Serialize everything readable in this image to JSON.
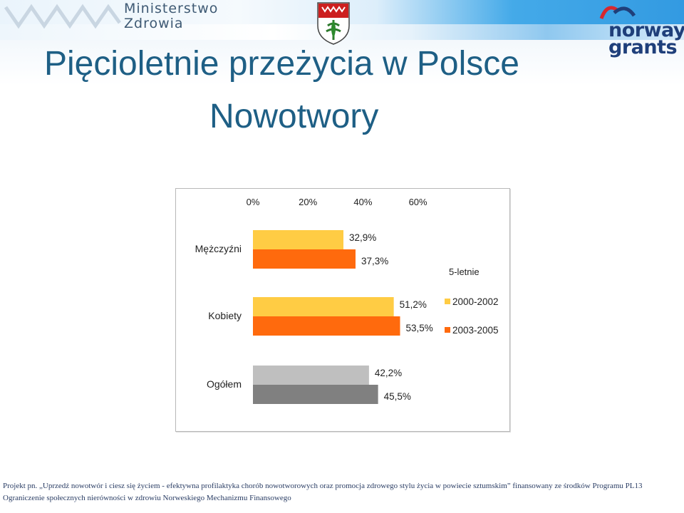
{
  "header": {
    "ministry_line1": "Ministerstwo",
    "ministry_line2": "Zdrowia",
    "norway_line1": "norway",
    "norway_line2": "grants"
  },
  "slide": {
    "title": "Pięcioletnie przeżycia w Polsce",
    "subtitle": "Nowotwory"
  },
  "chart_data": {
    "type": "bar",
    "orientation": "horizontal",
    "categories": [
      "Mężczyźni",
      "Kobiety",
      "Ogółem"
    ],
    "series": [
      {
        "name": "2000-2002",
        "values": [
          32.9,
          51.2,
          42.2
        ],
        "labels": [
          "32,9%",
          "51,2%",
          "42,2%"
        ]
      },
      {
        "name": "2003-2005",
        "values": [
          37.3,
          53.5,
          45.5
        ],
        "labels": [
          "37,3%",
          "53,5%",
          "45,5%"
        ]
      }
    ],
    "xlim": [
      0,
      60
    ],
    "x_ticks": [
      "0%",
      "20%",
      "40%",
      "60%"
    ],
    "x_axis_position": "top",
    "legend_title": "5-letnie",
    "legend_position": "right",
    "grid": false,
    "colors": {
      "series_1": [
        "#ffcc44",
        "#ffcc44",
        "#bfbfbf"
      ],
      "series_2": [
        "#ff6a0d",
        "#ff6a0d",
        "#808080"
      ]
    }
  },
  "footer": {
    "line1": "Projekt pn. „Uprzedź nowotwór i ciesz się życiem - efektywna profilaktyka chorób nowotworowych oraz promocja zdrowego stylu życia w powiecie sztumskim” finansowany ze środków Programu PL13",
    "line2": "Ograniczenie społecznych nierówności w zdrowiu Norweskiego Mechanizmu Finansowego"
  }
}
